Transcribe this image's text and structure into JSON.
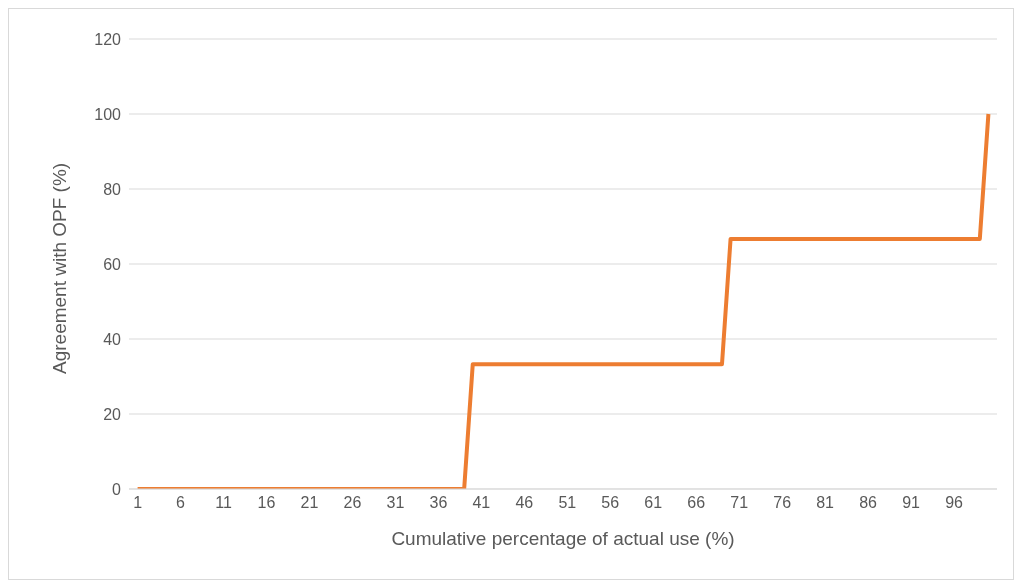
{
  "chart_data": {
    "type": "line",
    "xlabel": "Cumulative percentage of actual use (%)",
    "ylabel": "Agreement with OPF (%)",
    "x": [
      1,
      39,
      40,
      69,
      70,
      99,
      100
    ],
    "values": [
      0,
      0,
      33.3,
      33.3,
      66.7,
      66.7,
      100
    ],
    "color": "#ed7d31",
    "xlim": [
      0,
      101
    ],
    "xticks": [
      1,
      6,
      11,
      16,
      21,
      26,
      31,
      36,
      41,
      46,
      51,
      56,
      61,
      66,
      71,
      76,
      81,
      86,
      91,
      96
    ],
    "ylim": [
      0,
      120
    ],
    "yticks": [
      0,
      20,
      40,
      60,
      80,
      100,
      120
    ],
    "grid": "y",
    "marker": "none",
    "line_style": "solid"
  }
}
